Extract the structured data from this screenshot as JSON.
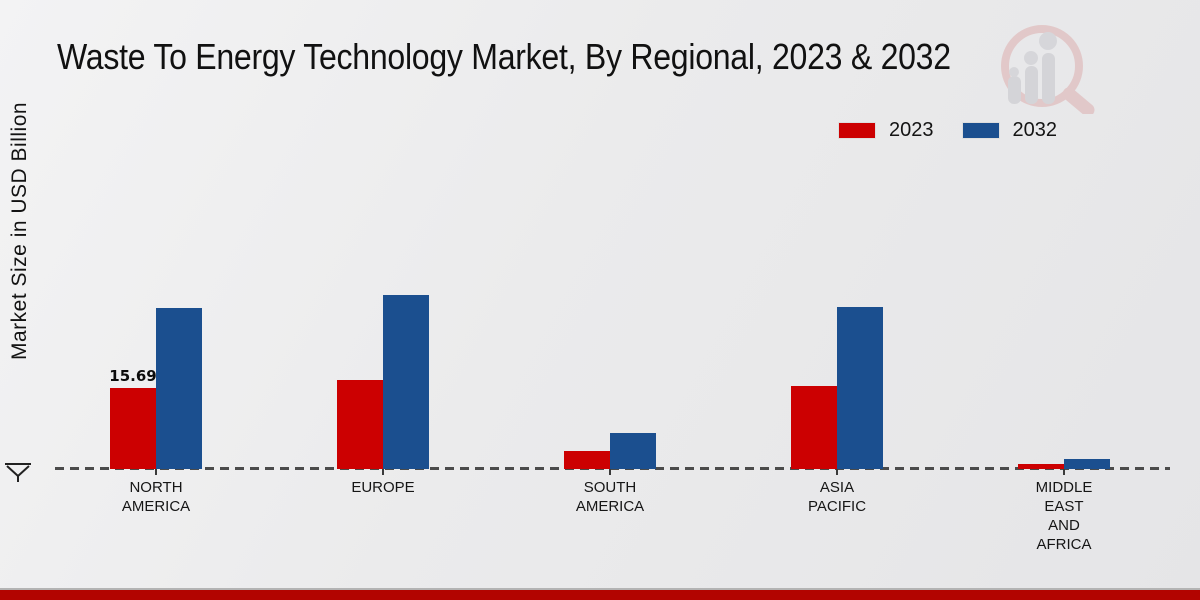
{
  "page": {
    "title": "Waste To Energy Technology Market, By Regional, 2023 & 2032",
    "ylabel": "Market Size in USD Billion",
    "watermark_icon": "magnifier-bar-chart-logo",
    "footer_color": "#b20400"
  },
  "legend": {
    "items": [
      {
        "label": "2023",
        "color": "#cc0001"
      },
      {
        "label": "2032",
        "color": "#1b4f8f"
      }
    ]
  },
  "chart_data": {
    "type": "bar",
    "title": "Waste To Energy Technology Market, By Regional, 2023 & 2032",
    "xlabel": "",
    "ylabel": "Market Size in USD Billion",
    "categories": [
      "NORTH AMERICA",
      "EUROPE",
      "SOUTH AMERICA",
      "ASIA PACIFIC",
      "MIDDLE EAST AND AFRICA"
    ],
    "category_lines": [
      [
        "NORTH",
        "AMERICA"
      ],
      [
        "EUROPE"
      ],
      [
        "SOUTH",
        "AMERICA"
      ],
      [
        "ASIA",
        "PACIFIC"
      ],
      [
        "MIDDLE",
        "EAST",
        "AND",
        "AFRICA"
      ]
    ],
    "series": [
      {
        "name": "2023",
        "color": "#cc0001",
        "values": [
          15.69,
          17.24,
          3.49,
          16.08,
          0.97
        ]
      },
      {
        "name": "2032",
        "color": "#1b4f8f",
        "values": [
          31.21,
          33.71,
          6.97,
          31.38,
          1.94
        ]
      }
    ],
    "data_labels": [
      {
        "series_index": 0,
        "category_index": 0,
        "text": "15.69"
      }
    ],
    "ylim": [
      0,
      35
    ],
    "grid": false,
    "legend_position": "top-right",
    "baseline_style": "dashed"
  }
}
